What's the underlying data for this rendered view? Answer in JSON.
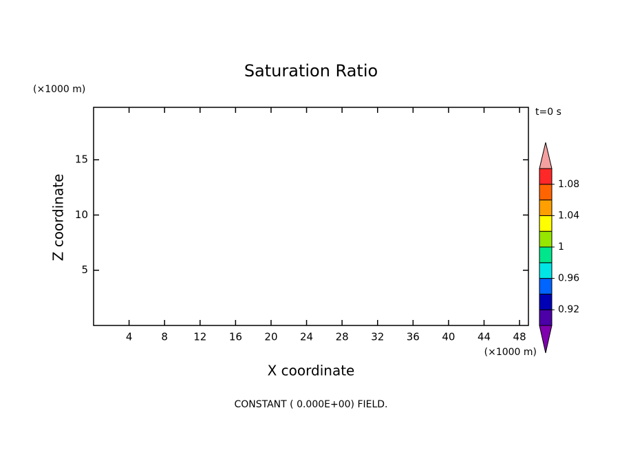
{
  "chart_data": {
    "type": "contour",
    "title": "Saturation Ratio",
    "y_unit": "(×1000 m)",
    "x_unit": "(×1000 m)",
    "xlabel": "X coordinate",
    "ylabel": "Z coordinate",
    "time_label": "t=0 s",
    "footer": "CONSTANT ( 0.000E+00) FIELD.",
    "xlim": [
      0,
      49
    ],
    "ylim": [
      0,
      19.75
    ],
    "xticks": [
      4,
      8,
      12,
      16,
      20,
      24,
      28,
      32,
      36,
      40,
      44,
      48
    ],
    "yticks": [
      5,
      10,
      15
    ],
    "grid": false,
    "colorbar": {
      "levels": [
        0.9,
        0.92,
        0.94,
        0.96,
        0.98,
        1,
        1.02,
        1.04,
        1.06,
        1.08,
        1.1
      ],
      "colors": [
        "#4b00a8",
        "#0000b4",
        "#0064ff",
        "#00e6e6",
        "#00e68c",
        "#96e600",
        "#ffff00",
        "#ffa000",
        "#ff6400",
        "#ff2828"
      ],
      "under_color": "#8000b0",
      "over_color": "#f4a0a0",
      "ticks": [
        0.92,
        0.96,
        1,
        1.04,
        1.08
      ]
    }
  }
}
